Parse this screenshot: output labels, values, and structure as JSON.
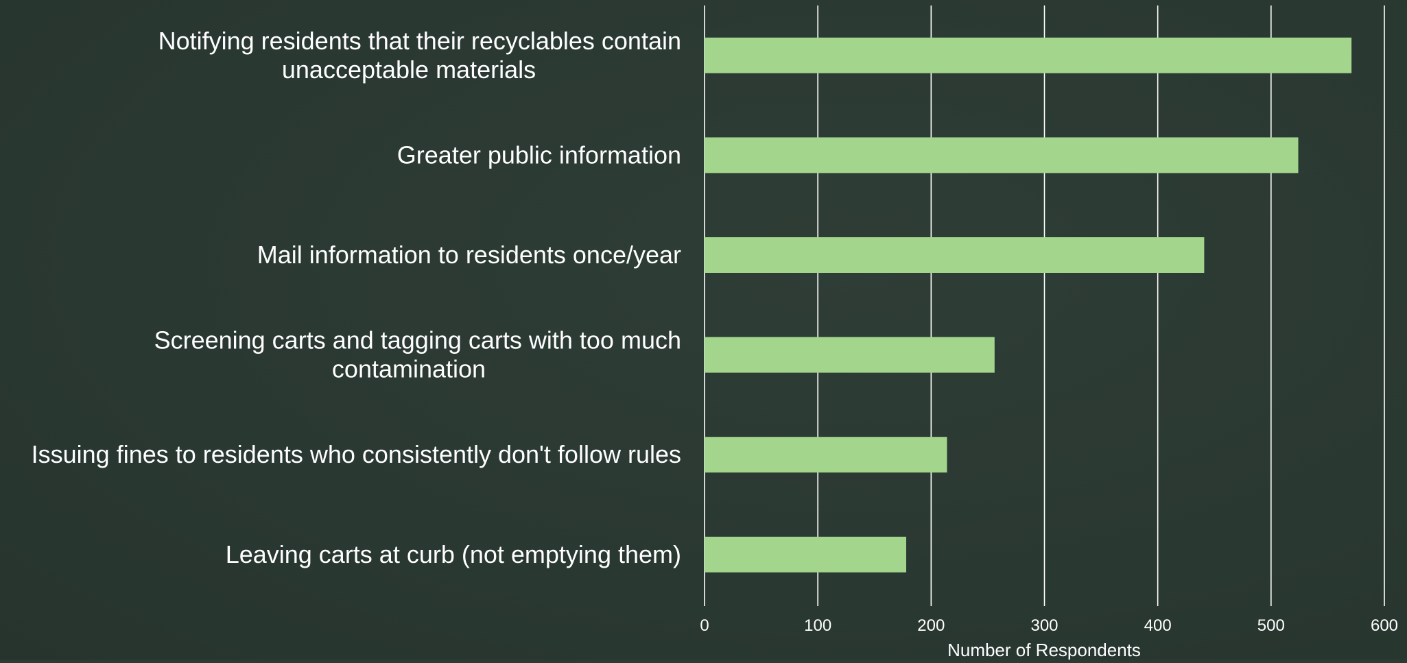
{
  "chart_data": {
    "type": "bar",
    "orientation": "horizontal",
    "title": "",
    "xlabel": "Number of Respondents",
    "ylabel": "",
    "categories": [
      [
        "Notifying residents that their recyclables contain",
        "unacceptable materials"
      ],
      [
        "Greater public information"
      ],
      [
        "Mail information to residents once/year"
      ],
      [
        "Screening carts and tagging carts with too much",
        "contamination"
      ],
      [
        "Issuing fines to residents who consistently don't follow rules"
      ],
      [
        "Leaving carts at curb (not emptying them)"
      ]
    ],
    "values": [
      571,
      524,
      441,
      256,
      214,
      178
    ],
    "xlim": [
      0,
      600
    ],
    "xticks": [
      "0",
      "100",
      "200",
      "300",
      "400",
      "500",
      "600"
    ],
    "grid": "vertical",
    "colors": {
      "bar": "#a3d68c",
      "background": "#2b3a33",
      "grid": "#ffffff",
      "text": "#ffffff"
    }
  }
}
